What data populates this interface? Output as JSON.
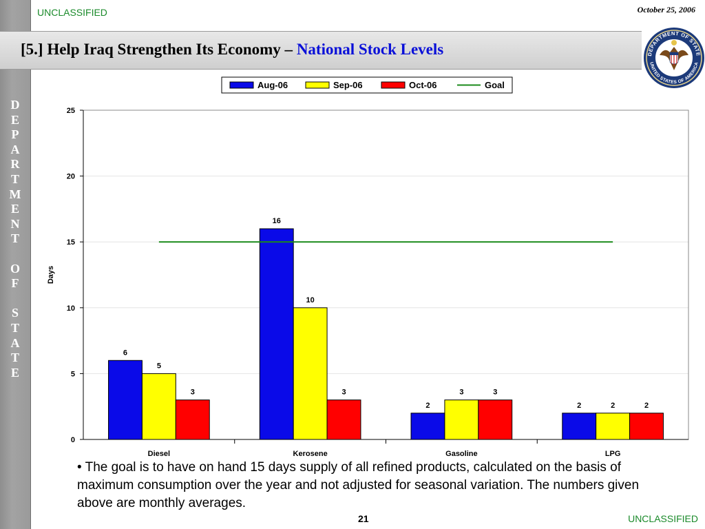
{
  "header": {
    "classification_top": "UNCLASSIFIED",
    "date": "October 25, 2006",
    "title_main": "[5.] Help Iraq Strengthen Its Economy – ",
    "title_accent": "National Stock Levels"
  },
  "sidebar": {
    "letters": [
      "D",
      "E",
      "P",
      "A",
      "R",
      "T",
      "M",
      "E",
      "N",
      "T",
      "",
      "O",
      "F",
      "",
      "S",
      "T",
      "A",
      "T",
      "E"
    ]
  },
  "seal": {
    "top_text": "DEPARTMENT OF STATE",
    "bottom_text": "UNITED STATES OF AMERICA"
  },
  "chart_data": {
    "type": "bar",
    "categories": [
      "Diesel",
      "Kerosene",
      "Gasoline",
      "LPG"
    ],
    "series": [
      {
        "name": "Aug-06",
        "values": [
          6,
          16,
          2,
          2
        ],
        "color": "#0a0ae8"
      },
      {
        "name": "Sep-06",
        "values": [
          5,
          10,
          3,
          2
        ],
        "color": "#ffff00"
      },
      {
        "name": "Oct-06",
        "values": [
          3,
          3,
          3,
          2
        ],
        "color": "#ff0000"
      }
    ],
    "goal": {
      "name": "Goal",
      "value": 15,
      "color": "#1a8a1a"
    },
    "ylabel": "Days",
    "ylim": [
      0,
      25
    ],
    "yticks": [
      0,
      5,
      10,
      15,
      20,
      25
    ],
    "grid": true,
    "legend_position": "top-center"
  },
  "footer": {
    "bullet": "• The goal is to have on hand 15 days supply of all refined products, calculated on the basis of maximum consumption over the year and not adjusted for seasonal variation.  The numbers given above are monthly averages.",
    "page_number": "21",
    "classification_bottom": "UNCLASSIFIED"
  },
  "colors": {
    "classification": "#1a8a2a",
    "title_accent": "#0a10d8",
    "sidebar": "#9a9a9a"
  }
}
